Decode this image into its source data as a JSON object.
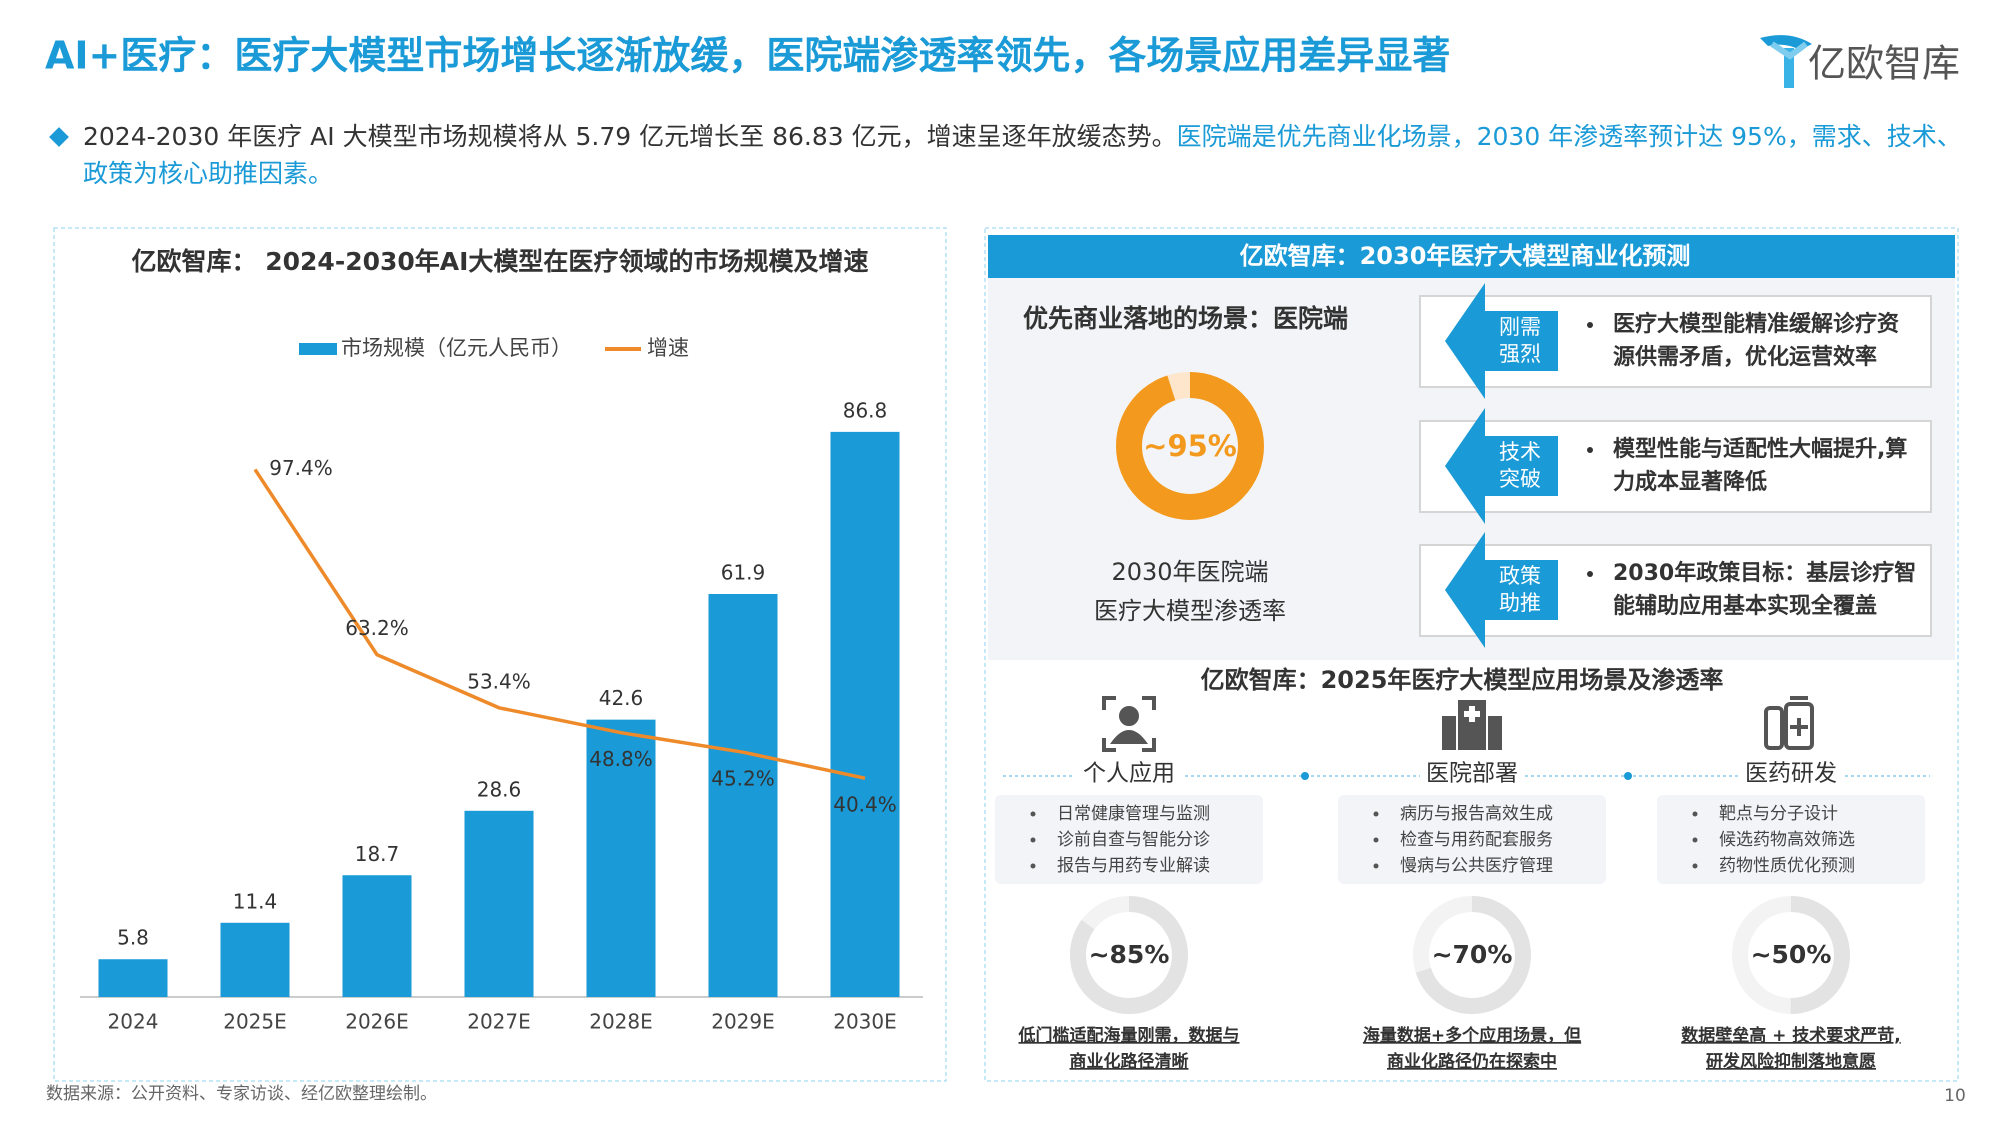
{
  "header": {
    "title": "AI+医疗：医疗大模型市场增长逐渐放缓，医院端渗透率领先，各场景应用差异显著",
    "logo": "亿欧智库",
    "summary": [
      "2024-2030 年医疗 AI 大模型市场规模将从 5.79 亿元增长至 86.83 亿元，增速呈逐年放缓态势。",
      "医院端是优先商业化场景，2030 年渗透率预计达 95%，需求、技术、政策为核心助推因素。"
    ]
  },
  "chart_data": {
    "type": "bar-line",
    "title": "亿欧智库： 2024-2030年AI大模型在医疗领域的市场规模及增速",
    "categories": [
      "2024",
      "2025E",
      "2026E",
      "2027E",
      "2028E",
      "2029E",
      "2030E"
    ],
    "series": [
      {
        "name": "市场规模（亿元人民币）",
        "type": "bar",
        "color": "#1a9ad6",
        "values": [
          5.8,
          11.4,
          18.7,
          28.6,
          42.6,
          61.9,
          86.8
        ]
      },
      {
        "name": "增速",
        "type": "line",
        "axis": "y2",
        "color": "#ee8a2a",
        "values": [
          null,
          97.4,
          63.2,
          53.4,
          48.8,
          45.2,
          40.4
        ],
        "value_labels": [
          null,
          "97.4%",
          "63.2%",
          "53.4%",
          "48.8%",
          "45.2%",
          "40.4%"
        ]
      }
    ],
    "ylim": [
      0,
      94
    ],
    "y2lim": [
      0,
      113
    ],
    "legend": "top"
  },
  "forecast": {
    "title": "亿欧智库：2030年医疗大模型商业化预测",
    "scenario": "优先商业落地的场景：医院端",
    "penetration": {
      "value": 95,
      "label": "~95%"
    },
    "caption": [
      "2030年医院端",
      "医疗大模型渗透率"
    ],
    "drivers": [
      {
        "tag": [
          "刚需",
          "强烈"
        ],
        "text": [
          "医疗大模型能精准缓解诊疗资",
          "源供需矛盾，优化运营效率"
        ]
      },
      {
        "tag": [
          "技术",
          "突破"
        ],
        "text": [
          "模型性能与适配性大幅提升,算",
          "力成本显著降低"
        ]
      },
      {
        "tag": [
          "政策",
          "助推"
        ],
        "text": [
          "2030年政策目标：基层诊疗智",
          "能辅助应用基本实现全覆盖"
        ]
      }
    ]
  },
  "scenarios": {
    "title": "亿欧智库：2025年医疗大模型应用场景及渗透率",
    "items": [
      {
        "name": "个人应用",
        "bullets": [
          "日常健康管理与监测",
          "诊前自查与智能分诊",
          "报告与用药专业解读"
        ],
        "penetration": {
          "value": 85,
          "label": "~85%"
        },
        "note": [
          "低门槛适配海量刚需，数据与",
          "商业化路径清晰"
        ]
      },
      {
        "name": "医院部署",
        "bullets": [
          "病历与报告高效生成",
          "检查与用药配套服务",
          "慢病与公共医疗管理"
        ],
        "penetration": {
          "value": 70,
          "label": "~70%"
        },
        "note": [
          "海量数据+多个应用场景，但",
          "商业化路径仍在探索中"
        ]
      },
      {
        "name": "医药研发",
        "bullets": [
          "靶点与分子设计",
          "候选药物高效筛选",
          "药物性质优化预测"
        ],
        "penetration": {
          "value": 50,
          "label": "~50%"
        },
        "note": [
          "数据壁垒高 + 技术要求严苛,",
          "研发风险抑制落地意愿"
        ]
      }
    ]
  },
  "source": "数据来源：公开资料、专家访谈、经亿欧整理绘制。",
  "page": 10
}
